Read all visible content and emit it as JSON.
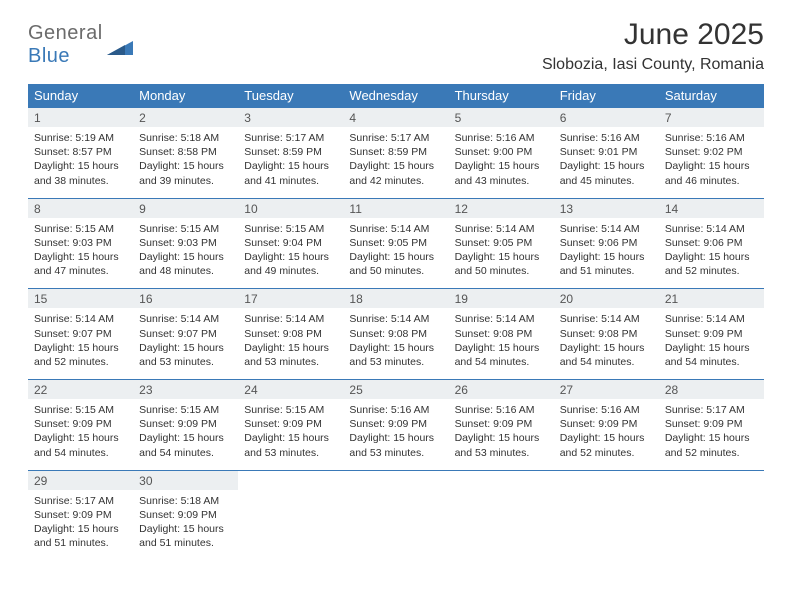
{
  "logo": {
    "line1": "General",
    "line2": "Blue"
  },
  "title": "June 2025",
  "location": "Slobozia, Iasi County, Romania",
  "colors": {
    "header_bg": "#3a79b7",
    "header_text": "#ffffff",
    "daynum_bg": "#eceff1",
    "border": "#3a79b7",
    "logo_gray": "#6b6b6b",
    "logo_blue": "#3a79b7"
  },
  "weekdays": [
    "Sunday",
    "Monday",
    "Tuesday",
    "Wednesday",
    "Thursday",
    "Friday",
    "Saturday"
  ],
  "weeks": [
    [
      {
        "d": "1",
        "sr": "5:19 AM",
        "ss": "8:57 PM",
        "dl": "15 hours and 38 minutes."
      },
      {
        "d": "2",
        "sr": "5:18 AM",
        "ss": "8:58 PM",
        "dl": "15 hours and 39 minutes."
      },
      {
        "d": "3",
        "sr": "5:17 AM",
        "ss": "8:59 PM",
        "dl": "15 hours and 41 minutes."
      },
      {
        "d": "4",
        "sr": "5:17 AM",
        "ss": "8:59 PM",
        "dl": "15 hours and 42 minutes."
      },
      {
        "d": "5",
        "sr": "5:16 AM",
        "ss": "9:00 PM",
        "dl": "15 hours and 43 minutes."
      },
      {
        "d": "6",
        "sr": "5:16 AM",
        "ss": "9:01 PM",
        "dl": "15 hours and 45 minutes."
      },
      {
        "d": "7",
        "sr": "5:16 AM",
        "ss": "9:02 PM",
        "dl": "15 hours and 46 minutes."
      }
    ],
    [
      {
        "d": "8",
        "sr": "5:15 AM",
        "ss": "9:03 PM",
        "dl": "15 hours and 47 minutes."
      },
      {
        "d": "9",
        "sr": "5:15 AM",
        "ss": "9:03 PM",
        "dl": "15 hours and 48 minutes."
      },
      {
        "d": "10",
        "sr": "5:15 AM",
        "ss": "9:04 PM",
        "dl": "15 hours and 49 minutes."
      },
      {
        "d": "11",
        "sr": "5:14 AM",
        "ss": "9:05 PM",
        "dl": "15 hours and 50 minutes."
      },
      {
        "d": "12",
        "sr": "5:14 AM",
        "ss": "9:05 PM",
        "dl": "15 hours and 50 minutes."
      },
      {
        "d": "13",
        "sr": "5:14 AM",
        "ss": "9:06 PM",
        "dl": "15 hours and 51 minutes."
      },
      {
        "d": "14",
        "sr": "5:14 AM",
        "ss": "9:06 PM",
        "dl": "15 hours and 52 minutes."
      }
    ],
    [
      {
        "d": "15",
        "sr": "5:14 AM",
        "ss": "9:07 PM",
        "dl": "15 hours and 52 minutes."
      },
      {
        "d": "16",
        "sr": "5:14 AM",
        "ss": "9:07 PM",
        "dl": "15 hours and 53 minutes."
      },
      {
        "d": "17",
        "sr": "5:14 AM",
        "ss": "9:08 PM",
        "dl": "15 hours and 53 minutes."
      },
      {
        "d": "18",
        "sr": "5:14 AM",
        "ss": "9:08 PM",
        "dl": "15 hours and 53 minutes."
      },
      {
        "d": "19",
        "sr": "5:14 AM",
        "ss": "9:08 PM",
        "dl": "15 hours and 54 minutes."
      },
      {
        "d": "20",
        "sr": "5:14 AM",
        "ss": "9:08 PM",
        "dl": "15 hours and 54 minutes."
      },
      {
        "d": "21",
        "sr": "5:14 AM",
        "ss": "9:09 PM",
        "dl": "15 hours and 54 minutes."
      }
    ],
    [
      {
        "d": "22",
        "sr": "5:15 AM",
        "ss": "9:09 PM",
        "dl": "15 hours and 54 minutes."
      },
      {
        "d": "23",
        "sr": "5:15 AM",
        "ss": "9:09 PM",
        "dl": "15 hours and 54 minutes."
      },
      {
        "d": "24",
        "sr": "5:15 AM",
        "ss": "9:09 PM",
        "dl": "15 hours and 53 minutes."
      },
      {
        "d": "25",
        "sr": "5:16 AM",
        "ss": "9:09 PM",
        "dl": "15 hours and 53 minutes."
      },
      {
        "d": "26",
        "sr": "5:16 AM",
        "ss": "9:09 PM",
        "dl": "15 hours and 53 minutes."
      },
      {
        "d": "27",
        "sr": "5:16 AM",
        "ss": "9:09 PM",
        "dl": "15 hours and 52 minutes."
      },
      {
        "d": "28",
        "sr": "5:17 AM",
        "ss": "9:09 PM",
        "dl": "15 hours and 52 minutes."
      }
    ],
    [
      {
        "d": "29",
        "sr": "5:17 AM",
        "ss": "9:09 PM",
        "dl": "15 hours and 51 minutes."
      },
      {
        "d": "30",
        "sr": "5:18 AM",
        "ss": "9:09 PM",
        "dl": "15 hours and 51 minutes."
      },
      null,
      null,
      null,
      null,
      null
    ]
  ],
  "labels": {
    "sunrise": "Sunrise:",
    "sunset": "Sunset:",
    "daylight": "Daylight:"
  }
}
